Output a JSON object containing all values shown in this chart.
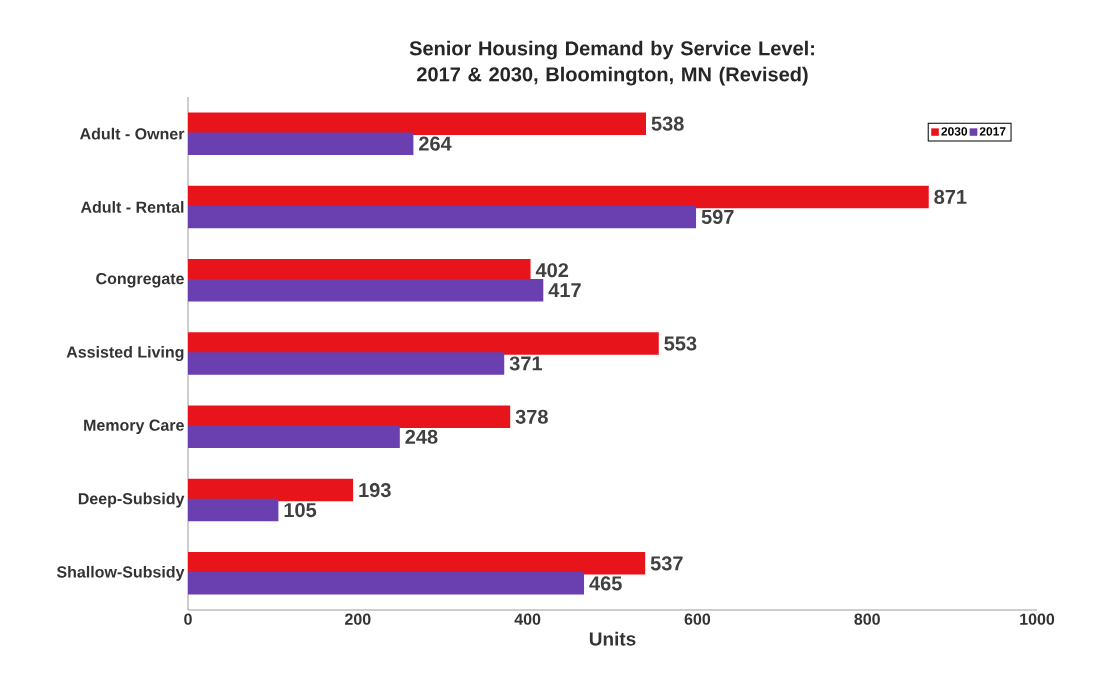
{
  "chart_data": {
    "type": "bar",
    "orientation": "horizontal",
    "title": "Senior Housing Demand by Service Level: 2017 & 2030, Bloomington, MN (Revised)",
    "xlabel": "Units",
    "categories": [
      "Adult - Owner",
      "Adult - Rental",
      "Congregate",
      "Assisted Living",
      "Memory Care",
      "Deep-Subsidy",
      "Shallow-Subsidy"
    ],
    "series": [
      {
        "name": "2030",
        "color": "#e8141b",
        "values": [
          538,
          871,
          402,
          553,
          378,
          193,
          537
        ]
      },
      {
        "name": "2017",
        "color": "#6a3fb0",
        "values": [
          264,
          597,
          417,
          371,
          248,
          105,
          465
        ]
      }
    ],
    "xlim": [
      0,
      1000
    ],
    "xticks": [
      0,
      200,
      400,
      600,
      800,
      1000
    ],
    "grid": false,
    "legend": "top right",
    "data_labels": true
  }
}
